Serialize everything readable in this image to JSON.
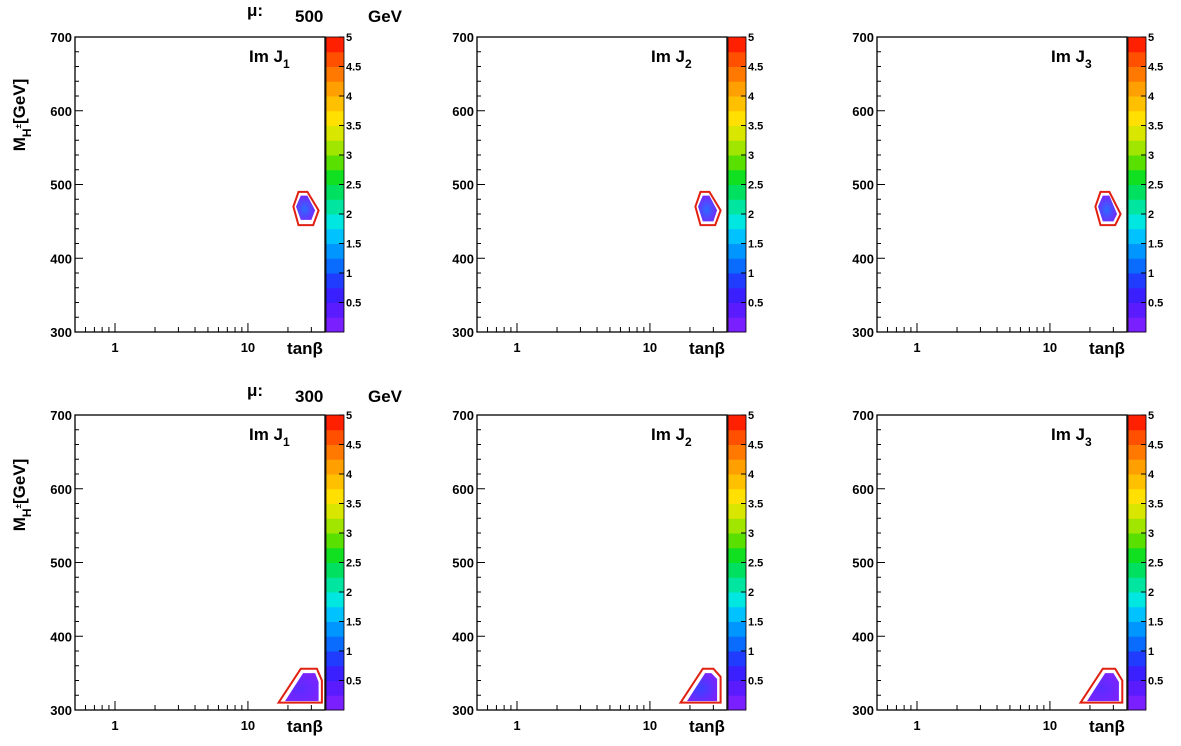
{
  "figure": {
    "rows": [
      {
        "mu_symbol": "μ:",
        "mu_value": "500",
        "mu_unit": "GeV"
      },
      {
        "mu_symbol": "μ:",
        "mu_value": "300",
        "mu_unit": "GeV"
      }
    ],
    "ylabel_main": "M",
    "ylabel_sub": "H",
    "ylabel_sup": "±",
    "ylabel_unit": "[GeV]",
    "xlabel": "tanβ"
  },
  "chart_data": [
    {
      "type": "heatmap",
      "row": 0,
      "col": 0,
      "title_prefix": "Im J",
      "title_index": "1",
      "x_scale": "log",
      "xlim": [
        0.5,
        38
      ],
      "x_ticks": [
        "1",
        "10"
      ],
      "ylim": [
        300,
        700
      ],
      "y_ticks": [
        "300",
        "400",
        "500",
        "600",
        "700"
      ],
      "colorbar": {
        "range": [
          0,
          5
        ],
        "ticks": [
          "0.5",
          "1",
          "1.5",
          "2",
          "2.5",
          "3",
          "3.5",
          "4",
          "4.5",
          "5"
        ],
        "colors": [
          "#7a1fff",
          "#5a1cff",
          "#3a20ff",
          "#1f3cff",
          "#0a6cff",
          "#0096ff",
          "#00c2ff",
          "#00e6e0",
          "#00e6a0",
          "#00e060",
          "#10e020",
          "#5ae000",
          "#a0e600",
          "#d8e600",
          "#ffe000",
          "#ffc000",
          "#ffa000",
          "#ff7800",
          "#ff5000",
          "#ff2000"
        ]
      },
      "contour_boundary": [
        [
          22,
          470
        ],
        [
          24,
          490
        ],
        [
          28,
          490
        ],
        [
          34,
          465
        ],
        [
          31,
          445
        ],
        [
          24,
          445
        ]
      ],
      "fill_region": [
        [
          23,
          470
        ],
        [
          25,
          485
        ],
        [
          28,
          485
        ],
        [
          32,
          465
        ],
        [
          30,
          452
        ],
        [
          25,
          452
        ]
      ],
      "max_value": 1.5
    },
    {
      "type": "heatmap",
      "row": 0,
      "col": 1,
      "title_prefix": "Im J",
      "title_index": "2",
      "x_scale": "log",
      "xlim": [
        0.5,
        38
      ],
      "x_ticks": [
        "1",
        "10"
      ],
      "ylim": [
        300,
        700
      ],
      "y_ticks": [
        "300",
        "400",
        "500",
        "600",
        "700"
      ],
      "colorbar": {
        "range": [
          0,
          5
        ],
        "ticks": [
          "0.5",
          "1",
          "1.5",
          "2",
          "2.5",
          "3",
          "3.5",
          "4",
          "4.5",
          "5"
        ]
      },
      "contour_boundary": [
        [
          22,
          470
        ],
        [
          24,
          490
        ],
        [
          28,
          490
        ],
        [
          34,
          465
        ],
        [
          31,
          445
        ],
        [
          24,
          445
        ]
      ],
      "fill_region": [
        [
          23,
          470
        ],
        [
          25,
          485
        ],
        [
          28,
          485
        ],
        [
          32,
          465
        ],
        [
          30,
          450
        ],
        [
          25,
          450
        ]
      ],
      "max_value": 1.5
    },
    {
      "type": "heatmap",
      "row": 0,
      "col": 2,
      "title_prefix": "Im J",
      "title_index": "3",
      "x_scale": "log",
      "xlim": [
        0.5,
        38
      ],
      "x_ticks": [
        "1",
        "10"
      ],
      "ylim": [
        300,
        700
      ],
      "y_ticks": [
        "300",
        "400",
        "500",
        "600",
        "700"
      ],
      "colorbar": {
        "range": [
          0,
          5
        ],
        "ticks": [
          "0.5",
          "1",
          "1.5",
          "2",
          "2.5",
          "3",
          "3.5",
          "4",
          "4.5",
          "5"
        ]
      },
      "contour_boundary": [
        [
          22,
          470
        ],
        [
          24,
          490
        ],
        [
          28,
          490
        ],
        [
          34,
          460
        ],
        [
          31,
          445
        ],
        [
          24,
          445
        ]
      ],
      "fill_region": [
        [
          23,
          470
        ],
        [
          25,
          485
        ],
        [
          28,
          485
        ],
        [
          32,
          460
        ],
        [
          30,
          450
        ],
        [
          25,
          450
        ]
      ],
      "max_value": 1.5
    },
    {
      "type": "heatmap",
      "row": 1,
      "col": 0,
      "title_prefix": "Im J",
      "title_index": "1",
      "x_scale": "log",
      "xlim": [
        0.5,
        38
      ],
      "x_ticks": [
        "1",
        "10"
      ],
      "ylim": [
        300,
        700
      ],
      "y_ticks": [
        "300",
        "400",
        "500",
        "600",
        "700"
      ],
      "colorbar": {
        "range": [
          0,
          5
        ],
        "ticks": [
          "0.5",
          "1",
          "1.5",
          "2",
          "2.5",
          "3",
          "3.5",
          "4",
          "4.5",
          "5"
        ]
      },
      "contour_boundary": [
        [
          17,
          310
        ],
        [
          25,
          356
        ],
        [
          33,
          356
        ],
        [
          36,
          340
        ],
        [
          36,
          310
        ]
      ],
      "fill_region": [
        [
          19,
          312
        ],
        [
          26,
          350
        ],
        [
          32,
          350
        ],
        [
          34,
          338
        ],
        [
          34,
          312
        ]
      ],
      "max_value": 0.5
    },
    {
      "type": "heatmap",
      "row": 1,
      "col": 1,
      "title_prefix": "Im J",
      "title_index": "2",
      "x_scale": "log",
      "xlim": [
        0.5,
        38
      ],
      "x_ticks": [
        "1",
        "10"
      ],
      "ylim": [
        300,
        700
      ],
      "y_ticks": [
        "300",
        "400",
        "500",
        "600",
        "700"
      ],
      "colorbar": {
        "range": [
          0,
          5
        ],
        "ticks": [
          "0.5",
          "1",
          "1.5",
          "2",
          "2.5",
          "3",
          "3.5",
          "4",
          "4.5",
          "5"
        ]
      },
      "contour_boundary": [
        [
          17,
          310
        ],
        [
          25,
          356
        ],
        [
          30,
          356
        ],
        [
          34,
          345
        ],
        [
          34,
          310
        ]
      ],
      "fill_region": [
        [
          19,
          312
        ],
        [
          26,
          350
        ],
        [
          29,
          350
        ],
        [
          32,
          342
        ],
        [
          32,
          312
        ]
      ],
      "max_value": 1.0
    },
    {
      "type": "heatmap",
      "row": 1,
      "col": 2,
      "title_prefix": "Im J",
      "title_index": "3",
      "x_scale": "log",
      "xlim": [
        0.5,
        38
      ],
      "x_ticks": [
        "1",
        "10"
      ],
      "ylim": [
        300,
        700
      ],
      "y_ticks": [
        "300",
        "400",
        "500",
        "600",
        "700"
      ],
      "colorbar": {
        "range": [
          0,
          5
        ],
        "ticks": [
          "0.5",
          "1",
          "1.5",
          "2",
          "2.5",
          "3",
          "3.5",
          "4",
          "4.5",
          "5"
        ]
      },
      "contour_boundary": [
        [
          17,
          310
        ],
        [
          25,
          356
        ],
        [
          31,
          356
        ],
        [
          35,
          340
        ],
        [
          35,
          310
        ]
      ],
      "fill_region": [
        [
          19,
          312
        ],
        [
          26,
          350
        ],
        [
          30,
          350
        ],
        [
          33,
          338
        ],
        [
          33,
          312
        ]
      ],
      "max_value": 0.5
    }
  ]
}
